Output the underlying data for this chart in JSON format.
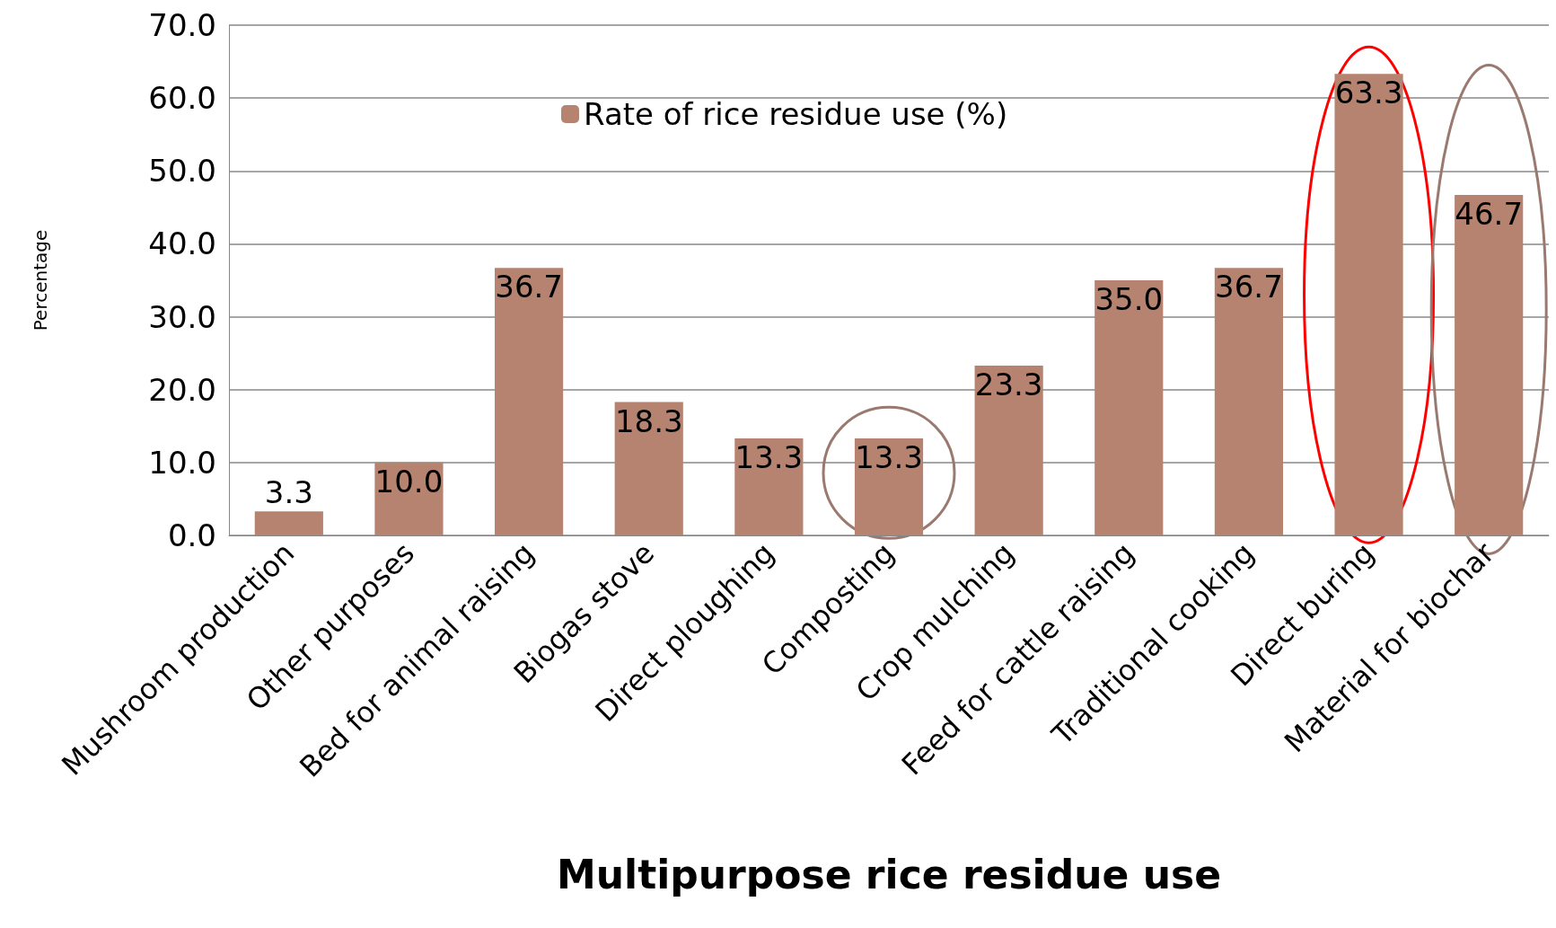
{
  "chart_data": {
    "type": "bar",
    "xlabel": "Multipurpose rice residue use",
    "ylabel": "Percentage",
    "categories": [
      "Mushroom production",
      "Other purposes",
      "Bed for animal raising",
      "Biogas stove",
      "Direct ploughing",
      "Composting",
      "Crop mulching",
      "Feed for cattle raising",
      "Traditional cooking",
      "Direct buring",
      "Material for biochar"
    ],
    "series": [
      {
        "name": "Rate of rice residue use (%)",
        "color": "#b5836f",
        "values": [
          3.3,
          10.0,
          36.7,
          18.3,
          13.3,
          13.3,
          23.3,
          35.0,
          36.7,
          63.3,
          46.7
        ],
        "value_labels": [
          "3.3",
          "10.0",
          "36.7",
          "18.3",
          "13.3",
          "13.3",
          "23.3",
          "35.0",
          "36.7",
          "63.3",
          "46.7"
        ]
      }
    ],
    "ylim": [
      0,
      70
    ],
    "yticks": [
      {
        "value": 0,
        "label": "0.0"
      },
      {
        "value": 10,
        "label": "10.0"
      },
      {
        "value": 20,
        "label": "20.0"
      },
      {
        "value": 30,
        "label": "30.0"
      },
      {
        "value": 40,
        "label": "40.0"
      },
      {
        "value": 50,
        "label": "50.0"
      },
      {
        "value": 60,
        "label": "60.0"
      },
      {
        "value": 70,
        "label": "70.0"
      }
    ],
    "grid": "y",
    "legend": "top"
  }
}
